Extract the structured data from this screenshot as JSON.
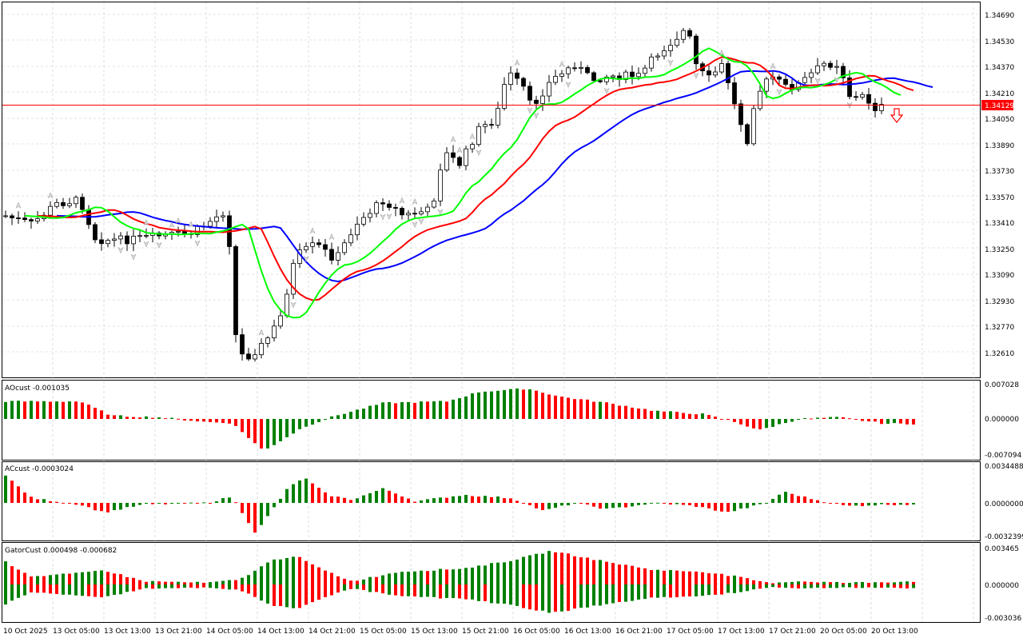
{
  "symbol_price": "1.34129",
  "colors": {
    "bull_bar": "#008000",
    "bear_bar": "#ff0000",
    "alligator_jaw": "#0000ff",
    "alligator_teeth": "#ff0000",
    "alligator_lips": "#00ff00",
    "bid_line": "#ff0000",
    "grid": "#c8c8c8"
  },
  "icons": {
    "sell_signal": "down-arrow-icon",
    "fractal_up": "fractal-up-icon",
    "fractal_down": "fractal-down-icon"
  },
  "main": {
    "price_labels": [
      "1.34690",
      "1.34530",
      "1.34370",
      "1.34210",
      "1.34050",
      "1.33890",
      "1.33730",
      "1.33570",
      "1.33410",
      "1.33250",
      "1.33090",
      "1.32930",
      "1.32770",
      "1.32610"
    ],
    "current_price": "1.34129"
  },
  "ao": {
    "label": "AOcust -0.001035",
    "scale": [
      "0.007028",
      "0.000000",
      "-0.007094"
    ]
  },
  "ac": {
    "label": "ACcust -0.0003024",
    "scale": [
      "0.0034488",
      "0.0000000",
      "-0.0032399"
    ]
  },
  "gator": {
    "label": "GatorCust 0.000498 -0.000682",
    "scale": [
      "0.003465",
      "0.000000",
      "-0.003036"
    ]
  },
  "time_axis": [
    "10 Oct 2025",
    "13 Oct 05:00",
    "13 Oct 13:00",
    "13 Oct 21:00",
    "14 Oct 05:00",
    "14 Oct 13:00",
    "14 Oct 21:00",
    "15 Oct 05:00",
    "15 Oct 13:00",
    "15 Oct 21:00",
    "16 Oct 05:00",
    "16 Oct 13:00",
    "16 Oct 21:00",
    "17 Oct 05:00",
    "17 Oct 13:00",
    "17 Oct 21:00",
    "20 Oct 05:00",
    "20 Oct 13:00"
  ]
}
